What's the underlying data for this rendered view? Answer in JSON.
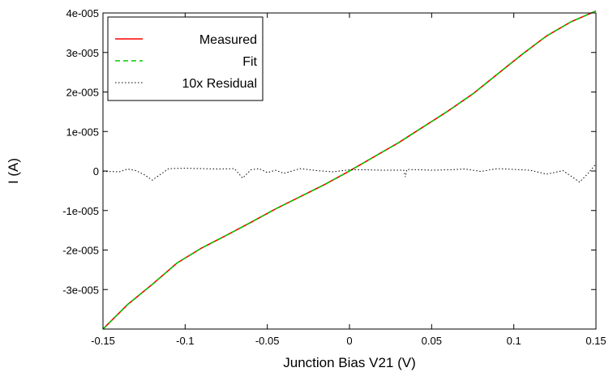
{
  "chart_data": {
    "type": "line",
    "title": "",
    "xlabel": "Junction Bias V21 (V)",
    "ylabel": "I (A)",
    "xlim": [
      -0.15,
      0.15
    ],
    "ylim": [
      -4e-05,
      4e-05
    ],
    "x_ticks": [
      {
        "value": -0.15,
        "label": "-0.15"
      },
      {
        "value": -0.1,
        "label": "-0.1"
      },
      {
        "value": -0.05,
        "label": "-0.05"
      },
      {
        "value": 0,
        "label": "0"
      },
      {
        "value": 0.05,
        "label": "0.05"
      },
      {
        "value": 0.1,
        "label": "0.1"
      },
      {
        "value": 0.15,
        "label": "0.15"
      }
    ],
    "y_ticks": [
      {
        "value": 4e-05,
        "label": "4e-005"
      },
      {
        "value": 3e-05,
        "label": "3e-005"
      },
      {
        "value": 2e-05,
        "label": "2e-005"
      },
      {
        "value": 1e-05,
        "label": "1e-005"
      },
      {
        "value": 0,
        "label": "0"
      },
      {
        "value": -1e-05,
        "label": "-1e-005"
      },
      {
        "value": -2e-05,
        "label": "-2e-005"
      },
      {
        "value": -3e-05,
        "label": "-3e-005"
      }
    ],
    "grid": false,
    "legend_position": "top-left",
    "x": [
      -0.15,
      -0.135,
      -0.12,
      -0.105,
      -0.09,
      -0.075,
      -0.06,
      -0.045,
      -0.03,
      -0.015,
      0,
      0.015,
      0.03,
      0.045,
      0.06,
      0.075,
      0.09,
      0.105,
      0.12,
      0.135,
      0.15
    ],
    "series": [
      {
        "name": "Measured",
        "color": "#ff0000",
        "style": "solid",
        "values": [
          -4e-05,
          -3.38e-05,
          -2.87e-05,
          -2.33e-05,
          -1.95e-05,
          -1.63e-05,
          -1.3e-05,
          -9.6e-06,
          -6.5e-06,
          -3.4e-06,
          0,
          3.6e-06,
          7.2e-06,
          1.12e-05,
          1.52e-05,
          1.95e-05,
          2.45e-05,
          2.95e-05,
          3.42e-05,
          3.78e-05,
          4.05e-05
        ]
      },
      {
        "name": "Fit",
        "color": "#00cc00",
        "style": "dashed",
        "values": [
          -4e-05,
          -3.38e-05,
          -2.87e-05,
          -2.33e-05,
          -1.95e-05,
          -1.63e-05,
          -1.3e-05,
          -9.6e-06,
          -6.5e-06,
          -3.4e-06,
          0,
          3.6e-06,
          7.2e-06,
          1.12e-05,
          1.52e-05,
          1.95e-05,
          2.45e-05,
          2.95e-05,
          3.42e-05,
          3.78e-05,
          4.05e-05
        ]
      },
      {
        "name": "10x Residual",
        "color": "#000000",
        "style": "dotted",
        "x": [
          -0.15,
          -0.14,
          -0.135,
          -0.13,
          -0.125,
          -0.12,
          -0.11,
          -0.1,
          -0.09,
          -0.08,
          -0.07,
          -0.065,
          -0.06,
          -0.055,
          -0.05,
          -0.045,
          -0.04,
          -0.03,
          -0.02,
          -0.01,
          0,
          0.01,
          0.02,
          0.033,
          0.034,
          0.035,
          0.05,
          0.06,
          0.07,
          0.08,
          0.09,
          0.1,
          0.11,
          0.12,
          0.13,
          0.14,
          0.145,
          0.15
        ],
        "values": [
          -1e-07,
          -2e-07,
          5e-07,
          1e-07,
          -9e-07,
          -2.3e-06,
          6e-07,
          7e-07,
          6e-07,
          5e-07,
          6e-07,
          -1.8e-06,
          3e-07,
          6e-07,
          -4e-07,
          2e-07,
          -6e-07,
          6e-07,
          1e-07,
          -2e-07,
          3e-07,
          3e-07,
          2e-07,
          2e-07,
          -1.5e-06,
          4e-07,
          2e-07,
          3e-07,
          5e-07,
          -1e-07,
          6e-07,
          4e-07,
          2e-07,
          -8e-07,
          1e-07,
          -2.8e-06,
          -7e-07,
          1.8e-06
        ]
      }
    ]
  }
}
